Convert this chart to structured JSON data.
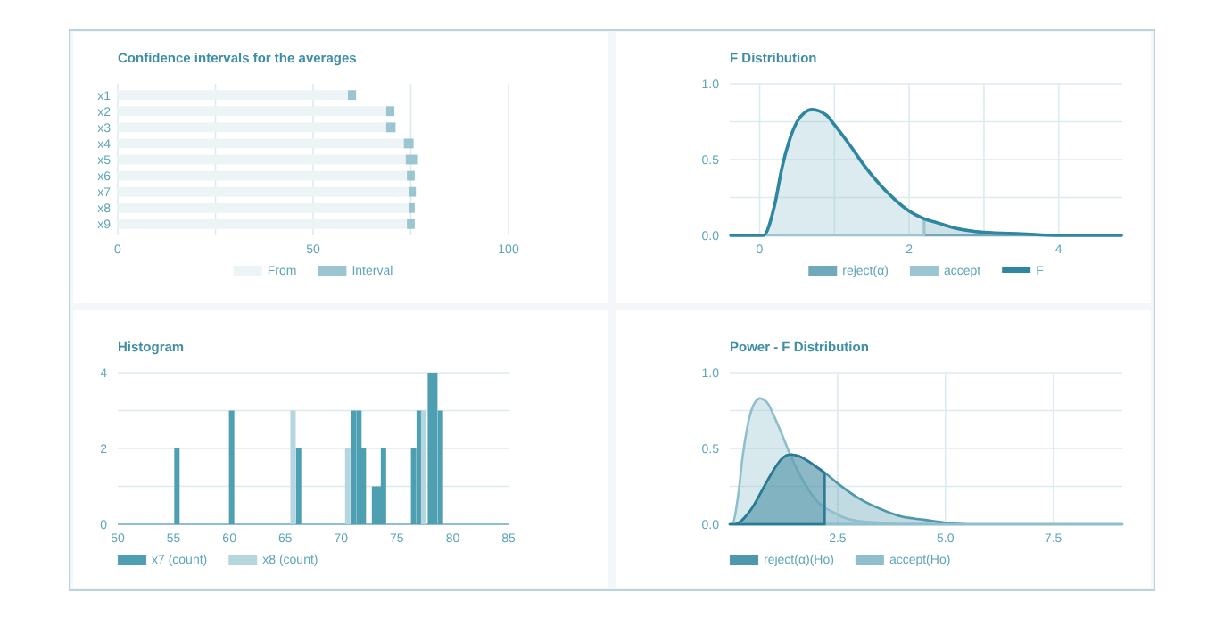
{
  "chart_data": [
    {
      "type": "bar",
      "orientation": "horizontal",
      "stacked": true,
      "title": "Confidence intervals for the averages",
      "categories": [
        "x1",
        "x2",
        "x3",
        "x4",
        "x5",
        "x6",
        "x7",
        "x8",
        "x9"
      ],
      "series": [
        {
          "name": "From",
          "color": "#edf4f6",
          "values": [
            58.9,
            68.7,
            68.7,
            73.2,
            73.7,
            74.0,
            74.6,
            74.6,
            74.0
          ]
        },
        {
          "name": "Interval",
          "color": "#9cc5d2",
          "values": [
            2.1,
            2.1,
            2.4,
            2.5,
            2.9,
            2.0,
            1.7,
            1.4,
            2.0
          ]
        }
      ],
      "xlim": [
        0,
        100
      ],
      "xticks": [
        0,
        {
          "value": 25,
          "label": null
        },
        50,
        {
          "value": 75,
          "label": null
        },
        100
      ],
      "grid": "x",
      "legend": "bottom"
    },
    {
      "type": "area",
      "title": "F Distribution",
      "series": [
        {
          "name": "reject(α)",
          "color": "#6fa9ba",
          "x": [
            2.2,
            2.4,
            2.6,
            3.0,
            3.5,
            4.0,
            4.85
          ],
          "values": [
            0.11,
            0.08,
            0.05,
            0.02,
            0.01,
            0,
            0
          ]
        },
        {
          "name": "accept",
          "color": "#9cc5d2",
          "x": [
            -0.4,
            0.05,
            0.2,
            0.3,
            0.4,
            0.5,
            0.6,
            0.7,
            0.8,
            0.9,
            1.0,
            1.2,
            1.4,
            1.6,
            1.8,
            2.0,
            2.2
          ],
          "values": [
            0,
            0,
            0.2,
            0.45,
            0.63,
            0.75,
            0.81,
            0.83,
            0.82,
            0.79,
            0.73,
            0.6,
            0.46,
            0.34,
            0.24,
            0.16,
            0.11
          ]
        },
        {
          "name": "F",
          "type": "line",
          "color": "#2f86a0",
          "x": [
            -0.4,
            0.05,
            0.2,
            0.3,
            0.4,
            0.5,
            0.6,
            0.7,
            0.8,
            0.9,
            1.0,
            1.2,
            1.4,
            1.6,
            1.8,
            2.0,
            2.2,
            2.4,
            2.6,
            3.0,
            3.5,
            4.0,
            4.85
          ],
          "values": [
            0,
            0,
            0.2,
            0.45,
            0.63,
            0.75,
            0.81,
            0.83,
            0.82,
            0.79,
            0.73,
            0.6,
            0.46,
            0.34,
            0.24,
            0.16,
            0.11,
            0.08,
            0.05,
            0.02,
            0.01,
            0,
            0
          ]
        }
      ],
      "xlim": [
        -0.4,
        4.85
      ],
      "xticks": [
        0,
        {
          "value": 1,
          "label": null
        },
        2,
        {
          "value": 3,
          "label": null
        },
        4
      ],
      "ylim": [
        0,
        1
      ],
      "yticks": [
        {
          "value": 0,
          "label": "0.0"
        },
        {
          "value": 0.25,
          "label": null
        },
        0.5,
        {
          "value": 0.75,
          "label": null
        },
        {
          "value": 1,
          "label": "1.0"
        }
      ],
      "grid": true,
      "legend": "bottom"
    },
    {
      "type": "bar",
      "title": "Histogram",
      "series": [
        {
          "name": "x7 (count)",
          "color": "#4f9fb2",
          "x": [
            55.3,
            60.2,
            66.2,
            71.1,
            71.6,
            72.0,
            73.0,
            73.4,
            73.8,
            76.5,
            77.0,
            78.0,
            78.4,
            78.9
          ],
          "values": [
            2,
            3,
            2,
            3,
            3,
            2,
            1,
            1,
            2,
            2,
            3,
            4,
            4,
            3
          ]
        },
        {
          "name": "x8 (count)",
          "color": "#b5d6df",
          "x": [
            65.7,
            70.6,
            77.4
          ],
          "values": [
            3,
            2,
            3
          ]
        }
      ],
      "xlim": [
        50,
        85
      ],
      "xticks": [
        50,
        55,
        60,
        65,
        70,
        75,
        80,
        85
      ],
      "ylim": [
        0,
        4
      ],
      "yticks": [
        0,
        {
          "value": 1,
          "label": null
        },
        2,
        {
          "value": 3,
          "label": null
        },
        4
      ],
      "grid": "y",
      "legend": "bottom"
    },
    {
      "type": "area",
      "title": "Power - F Distribution",
      "series": [
        {
          "name": "reject(α)(Ho)",
          "color": "#4f97ad",
          "x": [
            0,
            0.1,
            0.5,
            0.8,
            1.0,
            1.2,
            1.4,
            1.6,
            1.8,
            2.0,
            2.2,
            2.5,
            3.0,
            3.5,
            4.0,
            4.5,
            5.0,
            5.5,
            6.0,
            9.1
          ],
          "values": [
            0,
            0,
            0.1,
            0.25,
            0.35,
            0.43,
            0.46,
            0.45,
            0.42,
            0.38,
            0.34,
            0.27,
            0.17,
            0.1,
            0.05,
            0.03,
            0.01,
            0,
            0,
            0
          ]
        },
        {
          "name": "accept(Ho)",
          "color": "#8fbfcd",
          "x": [
            0,
            0.05,
            0.2,
            0.3,
            0.4,
            0.5,
            0.6,
            0.7,
            0.8,
            0.9,
            1.0,
            1.2,
            1.4,
            1.6,
            1.8,
            2.0,
            2.2,
            2.4,
            2.6,
            3.0,
            3.5,
            4.0,
            5.0,
            9.1
          ],
          "values": [
            0,
            0,
            0.2,
            0.45,
            0.63,
            0.75,
            0.81,
            0.83,
            0.82,
            0.79,
            0.73,
            0.6,
            0.46,
            0.34,
            0.24,
            0.16,
            0.11,
            0.08,
            0.05,
            0.02,
            0.01,
            0,
            0,
            0
          ]
        },
        {
          "color": "#2b7a93",
          "x": [
            0,
            0.1,
            0.5,
            0.8,
            1.0,
            1.2,
            1.4,
            1.6,
            1.8,
            2.0,
            2.2
          ],
          "values": [
            0,
            0,
            0.1,
            0.25,
            0.35,
            0.43,
            0.46,
            0.45,
            0.42,
            0.38,
            0.34
          ]
        }
      ],
      "xlim": [
        0,
        9.1
      ],
      "xticks": [
        2.5,
        {
          "value": 5,
          "label": "5.0"
        },
        7.5
      ],
      "ylim": [
        0,
        1
      ],
      "yticks": [
        {
          "value": 0,
          "label": "0.0"
        },
        {
          "value": 0.25,
          "label": null
        },
        0.5,
        {
          "value": 0.75,
          "label": null
        },
        {
          "value": 1,
          "label": "1.0"
        }
      ],
      "grid": true,
      "legend": "bottom"
    }
  ]
}
